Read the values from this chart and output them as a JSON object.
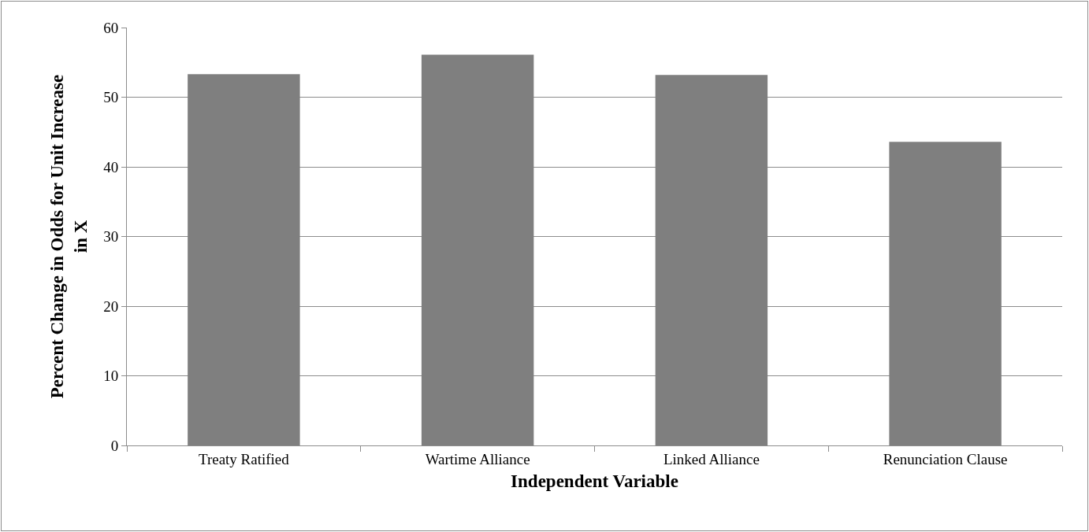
{
  "chart_data": {
    "type": "bar",
    "xlabel": "Independent Variable",
    "ylabel": "Percent Change in Odds for Unit Increase in X",
    "categories": [
      "Treaty Ratified",
      "Wartime Alliance",
      "Linked Alliance",
      "Renunciation Clause"
    ],
    "values": [
      53.3,
      56.1,
      53.2,
      43.6
    ],
    "color": "#7f7f7f",
    "ylim": [
      0,
      60
    ],
    "yticks": [
      0,
      10,
      20,
      30,
      40,
      50,
      60
    ],
    "grid": "y"
  }
}
